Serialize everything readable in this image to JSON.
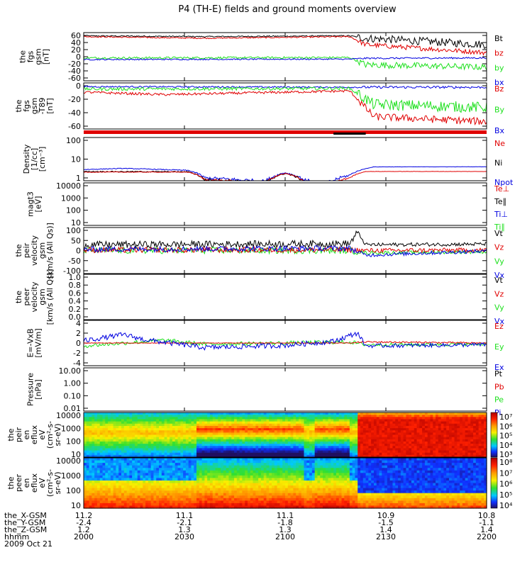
{
  "title": "P4 (TH-E) fields and ground moments overview",
  "colors": {
    "black": "#000000",
    "red": "#e00000",
    "green": "#1ee01e",
    "blue": "#0000e0"
  },
  "chart_data": {
    "type": "line",
    "x_ticks": [
      "2000",
      "2030",
      "2100",
      "2130",
      "2200"
    ],
    "panels": [
      {
        "id": "fgs-gsm",
        "ylabel": [
          "the",
          "fgs",
          "gsm",
          "[nT]"
        ],
        "yticks": [
          "60",
          "40",
          "20",
          "0",
          "-20",
          "-40",
          "-60"
        ],
        "ylim": [
          -60,
          60
        ],
        "legend": [
          {
            "label": "Bt",
            "color": "black"
          },
          {
            "label": "bz",
            "color": "red"
          },
          {
            "label": "by",
            "color": "green"
          },
          {
            "label": "bx",
            "color": "blue"
          }
        ]
      },
      {
        "id": "fgs-gsm-t89",
        "ylabel": [
          "the",
          "fgs",
          "gsm",
          "-T89",
          "[nT]"
        ],
        "yticks": [
          "0",
          "-20",
          "-40",
          "-60"
        ],
        "ylim": [
          -70,
          5
        ],
        "legend": [
          {
            "label": "Bz",
            "color": "red"
          },
          {
            "label": "By",
            "color": "green"
          },
          {
            "label": "Bx",
            "color": "blue"
          }
        ]
      },
      {
        "id": "density",
        "ylabel": [
          "Density",
          "[1/cc]",
          "[cm^-3]"
        ],
        "yticks": [
          "100",
          "10",
          "1"
        ],
        "log": true,
        "legend": [
          {
            "label": "Ne",
            "color": "red"
          },
          {
            "label": "Ni",
            "color": "black"
          },
          {
            "label": "Npot",
            "color": "blue"
          }
        ]
      },
      {
        "id": "temperature",
        "ylabel": [
          "magt3",
          "[eV]"
        ],
        "yticks": [
          "10000",
          "1000",
          "100",
          "10"
        ],
        "log": true,
        "legend": [
          {
            "label": "Te⊥",
            "color": "red"
          },
          {
            "label": "Te∥",
            "color": "black"
          },
          {
            "label": "Ti⊥",
            "color": "blue"
          },
          {
            "label": "Ti∥",
            "color": "green"
          }
        ]
      },
      {
        "id": "peir-velocity",
        "ylabel": [
          "the",
          "peir",
          "velocity",
          "gsm",
          "[km/s (All Qs)]"
        ],
        "yticks": [
          "100",
          "50",
          "0",
          "-50",
          "-100"
        ],
        "ylim": [
          -100,
          100
        ],
        "legend": [
          {
            "label": "Vt",
            "color": "black"
          },
          {
            "label": "Vz",
            "color": "red"
          },
          {
            "label": "Vy",
            "color": "green"
          },
          {
            "label": "Vx",
            "color": "blue"
          }
        ]
      },
      {
        "id": "peer-velocity",
        "ylabel": [
          "the",
          "peer",
          "velocity",
          "gsm",
          "[km/s (All Qs)]"
        ],
        "yticks": [
          "1.0",
          "0.8",
          "0.6",
          "0.4",
          "0.2",
          "0.0"
        ],
        "ylim": [
          0,
          1
        ],
        "legend": [
          {
            "label": "Vt",
            "color": "black"
          },
          {
            "label": "Vz",
            "color": "red"
          },
          {
            "label": "Vy",
            "color": "green"
          },
          {
            "label": "Vx",
            "color": "blue"
          }
        ]
      },
      {
        "id": "efield",
        "ylabel": [
          "E=-VxB",
          "[mV/m]"
        ],
        "yticks": [
          "4",
          "2",
          "0",
          "-2",
          "-4"
        ],
        "ylim": [
          -4,
          4
        ],
        "legend": [
          {
            "label": "Ez",
            "color": "red"
          },
          {
            "label": "Ey",
            "color": "green"
          },
          {
            "label": "Ex",
            "color": "blue"
          }
        ]
      },
      {
        "id": "pressure",
        "ylabel": [
          "Pressure",
          "[nPa]"
        ],
        "yticks": [
          "10.00",
          "1.00",
          "0.10",
          "0.01"
        ],
        "log": true,
        "legend": [
          {
            "label": "Pt",
            "color": "black"
          },
          {
            "label": "Pb",
            "color": "red"
          },
          {
            "label": "Pe",
            "color": "green"
          },
          {
            "label": "Pi",
            "color": "blue"
          }
        ]
      },
      {
        "id": "peir-eflux",
        "type": "heatmap",
        "ylabel": [
          "the",
          "peir",
          "en",
          "eflux",
          "eV",
          "(cm^2-s-",
          "sr-eV)"
        ],
        "yticks": [
          "10000",
          "1000",
          "100",
          "10"
        ],
        "colorbar_ticks": [
          "10^7",
          "10^6",
          "10^5",
          "10^4",
          "10^3"
        ]
      },
      {
        "id": "peer-eflux",
        "type": "heatmap",
        "ylabel": [
          "the",
          "peer",
          "en",
          "eflux",
          "eV",
          "(cm^2-s-",
          "sr-eV)"
        ],
        "yticks": [
          "10000",
          "1000",
          "100",
          "10"
        ],
        "colorbar_ticks": [
          "10^8",
          "10^7",
          "10^6",
          "10^5",
          "10^4"
        ]
      }
    ],
    "ephemeris": {
      "labels": [
        "the_X-GSM",
        "the_Y-GSM",
        "the_Z-GSM",
        "hhmm",
        "2009 Oct 21"
      ],
      "x_gsm": [
        "11.2",
        "11.1",
        "11.1",
        "10.9",
        "10.8"
      ],
      "y_gsm": [
        "-2.4",
        "-2.1",
        "-1.8",
        "-1.5",
        "-1.1"
      ],
      "z_gsm": [
        "1.2",
        "1.3",
        "1.3",
        "1.4",
        "1.4"
      ],
      "hhmm": [
        "2000",
        "2030",
        "2100",
        "2130",
        "2200"
      ]
    }
  }
}
